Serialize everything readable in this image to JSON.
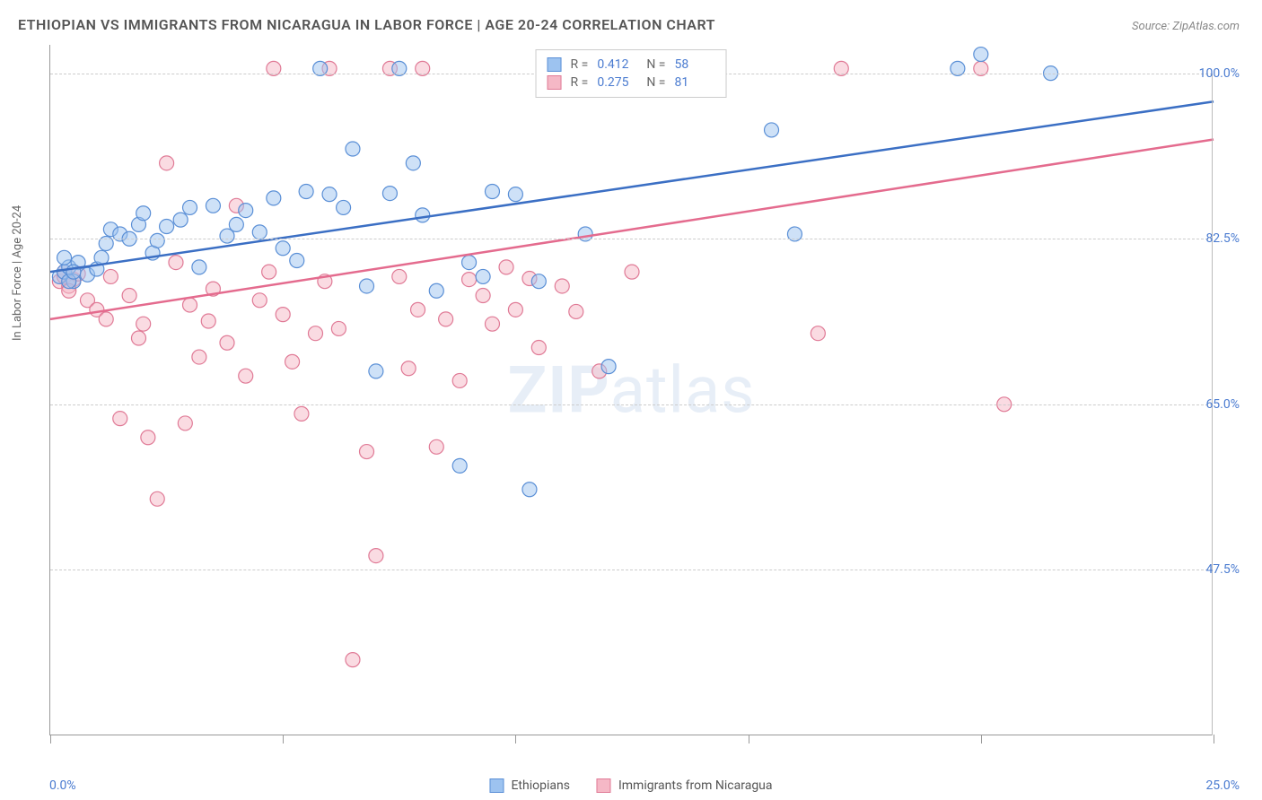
{
  "title": "ETHIOPIAN VS IMMIGRANTS FROM NICARAGUA IN LABOR FORCE | AGE 20-24 CORRELATION CHART",
  "source": "Source: ZipAtlas.com",
  "watermark": {
    "prefix": "ZIP",
    "suffix": "atlas"
  },
  "y_axis_label": "In Labor Force | Age 20-24",
  "chart": {
    "type": "scatter",
    "xlim": [
      0,
      25
    ],
    "ylim": [
      30,
      103
    ],
    "x_ticks": [
      0,
      5,
      10,
      15,
      20,
      25
    ],
    "x_tick_labels": {
      "0": "0.0%",
      "25": "25.0%"
    },
    "y_gridlines": [
      47.5,
      65.0,
      82.5,
      100.0
    ],
    "y_tick_labels": [
      "47.5%",
      "65.0%",
      "82.5%",
      "100.0%"
    ],
    "background_color": "#ffffff",
    "grid_color": "#cccccc",
    "marker_radius": 8,
    "marker_opacity": 0.5,
    "line_width": 2.5,
    "series": [
      {
        "name": "Ethiopians",
        "color_fill": "#9dc3f0",
        "color_stroke": "#5a8fd6",
        "line_color": "#3b6fc4",
        "R": "0.412",
        "N": "58",
        "regression": {
          "x1": 0,
          "y1": 79,
          "x2": 25,
          "y2": 97
        },
        "points": [
          [
            0.2,
            78.5
          ],
          [
            0.3,
            79
          ],
          [
            0.4,
            79.5
          ],
          [
            0.5,
            78
          ],
          [
            0.6,
            80
          ],
          [
            0.3,
            80.5
          ],
          [
            0.4,
            78
          ],
          [
            0.5,
            79
          ],
          [
            0.8,
            78.7
          ],
          [
            1.0,
            79.3
          ],
          [
            1.1,
            80.5
          ],
          [
            1.2,
            82
          ],
          [
            1.3,
            83.5
          ],
          [
            1.5,
            83.0
          ],
          [
            1.7,
            82.5
          ],
          [
            1.9,
            84
          ],
          [
            2.0,
            85.2
          ],
          [
            2.2,
            81
          ],
          [
            2.3,
            82.3
          ],
          [
            2.5,
            83.8
          ],
          [
            2.8,
            84.5
          ],
          [
            3.0,
            85.8
          ],
          [
            3.2,
            79.5
          ],
          [
            3.5,
            86
          ],
          [
            3.8,
            82.8
          ],
          [
            4.0,
            84
          ],
          [
            4.2,
            85.5
          ],
          [
            4.5,
            83.2
          ],
          [
            4.8,
            86.8
          ],
          [
            5.0,
            81.5
          ],
          [
            5.3,
            80.2
          ],
          [
            5.5,
            87.5
          ],
          [
            5.8,
            100.5
          ],
          [
            6.0,
            87.2
          ],
          [
            6.3,
            85.8
          ],
          [
            6.5,
            92
          ],
          [
            6.8,
            77.5
          ],
          [
            7.0,
            68.5
          ],
          [
            7.3,
            87.3
          ],
          [
            7.5,
            100.5
          ],
          [
            7.8,
            90.5
          ],
          [
            8.0,
            85
          ],
          [
            8.3,
            77
          ],
          [
            8.8,
            58.5
          ],
          [
            9.0,
            80
          ],
          [
            9.3,
            78.5
          ],
          [
            9.5,
            87.5
          ],
          [
            10.0,
            87.2
          ],
          [
            10.3,
            56
          ],
          [
            10.5,
            78
          ],
          [
            11.5,
            83
          ],
          [
            12.0,
            69
          ],
          [
            15.5,
            94
          ],
          [
            16.0,
            83
          ],
          [
            19.5,
            100.5
          ],
          [
            20.0,
            102
          ],
          [
            21.5,
            100
          ]
        ]
      },
      {
        "name": "Immigrants from Nicaragua",
        "color_fill": "#f5b8c6",
        "color_stroke": "#e07a96",
        "line_color": "#e46b8e",
        "R": "0.275",
        "N": "81",
        "regression": {
          "x1": 0,
          "y1": 74,
          "x2": 25,
          "y2": 93
        },
        "points": [
          [
            0.2,
            78
          ],
          [
            0.3,
            78.5
          ],
          [
            0.4,
            77.5
          ],
          [
            0.5,
            78.2
          ],
          [
            0.3,
            79
          ],
          [
            0.6,
            78.8
          ],
          [
            0.4,
            77
          ],
          [
            0.8,
            76
          ],
          [
            1.0,
            75
          ],
          [
            1.2,
            74
          ],
          [
            1.3,
            78.5
          ],
          [
            1.5,
            63.5
          ],
          [
            1.7,
            76.5
          ],
          [
            1.9,
            72
          ],
          [
            2.0,
            73.5
          ],
          [
            2.1,
            61.5
          ],
          [
            2.3,
            55
          ],
          [
            2.5,
            90.5
          ],
          [
            2.7,
            80
          ],
          [
            2.9,
            63
          ],
          [
            3.0,
            75.5
          ],
          [
            3.2,
            70
          ],
          [
            3.4,
            73.8
          ],
          [
            3.5,
            77.2
          ],
          [
            3.8,
            71.5
          ],
          [
            4.0,
            86
          ],
          [
            4.2,
            68
          ],
          [
            4.5,
            76
          ],
          [
            4.7,
            79
          ],
          [
            4.8,
            100.5
          ],
          [
            5.0,
            74.5
          ],
          [
            5.2,
            69.5
          ],
          [
            5.4,
            64
          ],
          [
            5.7,
            72.5
          ],
          [
            5.9,
            78
          ],
          [
            6.0,
            100.5
          ],
          [
            6.2,
            73
          ],
          [
            6.5,
            38
          ],
          [
            6.8,
            60
          ],
          [
            7.0,
            49
          ],
          [
            7.3,
            100.5
          ],
          [
            7.5,
            78.5
          ],
          [
            7.7,
            68.8
          ],
          [
            7.9,
            75
          ],
          [
            8.0,
            100.5
          ],
          [
            8.3,
            60.5
          ],
          [
            8.5,
            74
          ],
          [
            8.8,
            67.5
          ],
          [
            9.0,
            78.2
          ],
          [
            9.3,
            76.5
          ],
          [
            9.5,
            73.5
          ],
          [
            9.8,
            79.5
          ],
          [
            10.0,
            75
          ],
          [
            10.3,
            78.3
          ],
          [
            10.5,
            71
          ],
          [
            11.0,
            77.5
          ],
          [
            11.3,
            74.8
          ],
          [
            11.8,
            68.5
          ],
          [
            12.5,
            79
          ],
          [
            16.5,
            72.5
          ],
          [
            17.0,
            100.5
          ],
          [
            20.5,
            65
          ],
          [
            20.0,
            100.5
          ]
        ]
      }
    ]
  },
  "legend_top_labels": {
    "R": "R =",
    "N": "N ="
  },
  "legend_bottom_labels": [
    "Ethiopians",
    "Immigrants from Nicaragua"
  ]
}
